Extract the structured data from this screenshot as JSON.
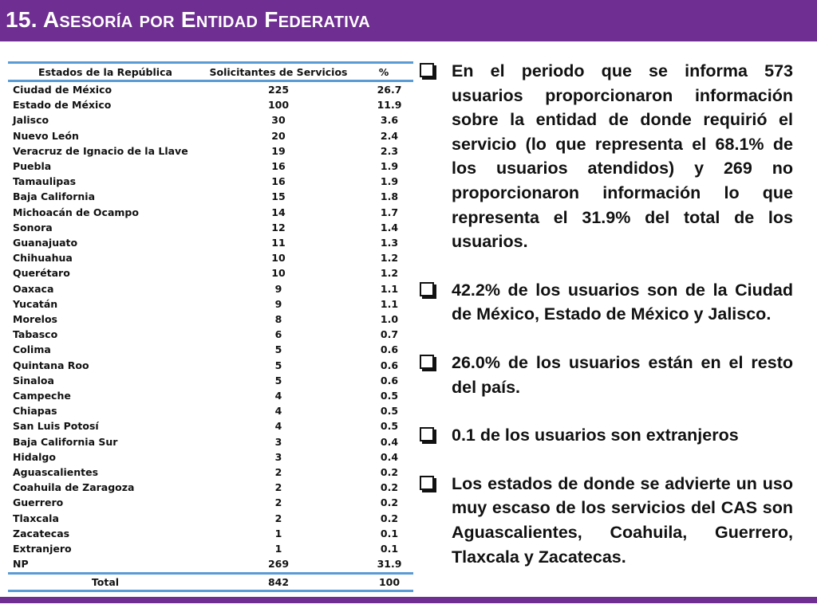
{
  "title": "15. Asesoría por Entidad Federativa",
  "table": {
    "headers": [
      "Estados de la República",
      "Solicitantes de Servicios",
      "%"
    ],
    "rows": [
      [
        "Ciudad de México",
        "225",
        "26.7"
      ],
      [
        "Estado de México",
        "100",
        "11.9"
      ],
      [
        "Jalisco",
        "30",
        "3.6"
      ],
      [
        "Nuevo León",
        "20",
        "2.4"
      ],
      [
        "Veracruz de Ignacio de la Llave",
        "19",
        "2.3"
      ],
      [
        "Puebla",
        "16",
        "1.9"
      ],
      [
        "Tamaulipas",
        "16",
        "1.9"
      ],
      [
        "Baja California",
        "15",
        "1.8"
      ],
      [
        "Michoacán de Ocampo",
        "14",
        "1.7"
      ],
      [
        "Sonora",
        "12",
        "1.4"
      ],
      [
        "Guanajuato",
        "11",
        "1.3"
      ],
      [
        "Chihuahua",
        "10",
        "1.2"
      ],
      [
        "Querétaro",
        "10",
        "1.2"
      ],
      [
        "Oaxaca",
        "9",
        "1.1"
      ],
      [
        "Yucatán",
        "9",
        "1.1"
      ],
      [
        "Morelos",
        "8",
        "1.0"
      ],
      [
        "Tabasco",
        "6",
        "0.7"
      ],
      [
        "Colima",
        "5",
        "0.6"
      ],
      [
        "Quintana Roo",
        "5",
        "0.6"
      ],
      [
        "Sinaloa",
        "5",
        "0.6"
      ],
      [
        "Campeche",
        "4",
        "0.5"
      ],
      [
        "Chiapas",
        "4",
        "0.5"
      ],
      [
        "San Luis Potosí",
        "4",
        "0.5"
      ],
      [
        "Baja California Sur",
        "3",
        "0.4"
      ],
      [
        "Hidalgo",
        "3",
        "0.4"
      ],
      [
        "Aguascalientes",
        "2",
        "0.2"
      ],
      [
        "Coahuila de Zaragoza",
        "2",
        "0.2"
      ],
      [
        "Guerrero",
        "2",
        "0.2"
      ],
      [
        "Tlaxcala",
        "2",
        "0.2"
      ],
      [
        "Zacatecas",
        "1",
        "0.1"
      ],
      [
        "Extranjero",
        "1",
        "0.1"
      ],
      [
        "NP",
        "269",
        "31.9"
      ]
    ],
    "total": [
      "Total",
      "842",
      "100"
    ]
  },
  "bullets": [
    "En el periodo que se informa 573 usuarios proporcionaron información sobre la entidad de donde requirió el servicio (lo que representa el 68.1% de los usuarios atendidos) y 269 no proporcionaron información lo que representa el 31.9% del total de los usuarios.",
    "42.2% de los usuarios son de la Ciudad de México, Estado de México y Jalisco.",
    "26.0% de los usuarios están en el resto del país.",
    "0.1 de los usuarios son extranjeros",
    "Los estados de donde se advierte un uso muy escaso de los servicios del CAS son Aguascalientes, Coahuila, Guerrero, Tlaxcala y Zacatecas."
  ],
  "icons": {
    "bullet": "checkbox-bullet-icon"
  },
  "colors": {
    "accent": "#6f2e91",
    "table_rule": "#5a9bd5"
  }
}
